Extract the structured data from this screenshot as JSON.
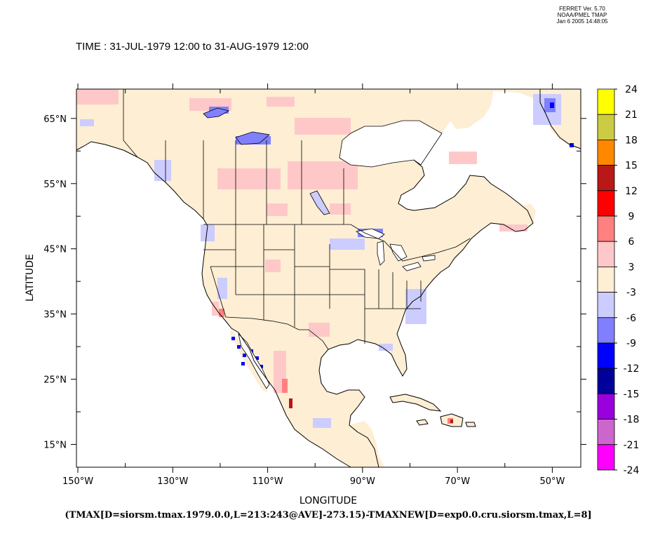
{
  "header": {
    "version_lines": [
      "FERRET Ver. 5.70",
      "NOAA/PMEL TMAP",
      "Jan  6 2005 14:48:05"
    ],
    "time": "TIME : 31-JUL-1979 12:00 to 31-AUG-1979 12:00"
  },
  "axes": {
    "xlabel": "LONGITUDE",
    "ylabel": "LATITUDE",
    "x_ticks": [
      {
        "label": "150°W",
        "value": -150
      },
      {
        "label": "130°W",
        "value": -130
      },
      {
        "label": "110°W",
        "value": -110
      },
      {
        "label": "90°W",
        "value": -90
      },
      {
        "label": "70°W",
        "value": -70
      },
      {
        "label": "50°W",
        "value": -50
      }
    ],
    "y_ticks": [
      {
        "label": "65°N",
        "value": 65
      },
      {
        "label": "55°N",
        "value": 55
      },
      {
        "label": "45°N",
        "value": 45
      },
      {
        "label": "35°N",
        "value": 35
      },
      {
        "label": "25°N",
        "value": 25
      },
      {
        "label": "15°N",
        "value": 15
      }
    ],
    "x_range": [
      -150.3,
      -44
    ],
    "y_range": [
      11.5,
      69.5
    ]
  },
  "formula": "(TMAX[D=siorsm.tmax.1979.0.0,L=213:243@AVE]-273.15)-TMAXNEW[D=exp0.0.cru.siorsm.tmax,L=8]",
  "colorbar": {
    "levels": [
      "24",
      "21",
      "18",
      "15",
      "12",
      "9",
      "6",
      "3",
      "-3",
      "-6",
      "-9",
      "-12",
      "-15",
      "-18",
      "-21",
      "-24"
    ],
    "colors": [
      "#ffff00",
      "#cccc44",
      "#ff8800",
      "#b81818",
      "#ff0000",
      "#ff8080",
      "#ffc8c8",
      "#fdeed4",
      "#ccccff",
      "#8080ff",
      "#0000ff",
      "#00009a",
      "#9900dd",
      "#cc66cc",
      "#ff00ff"
    ]
  },
  "colors": {
    "land_neutral": "#fdeed4",
    "warm_light": "#ffc8c8",
    "warm_mid": "#ff8080",
    "warm_strong": "#ff0000",
    "warm_dark": "#b81818",
    "cool_light": "#ccccff",
    "cool_mid": "#8080ff",
    "cool_strong": "#0000ff"
  }
}
